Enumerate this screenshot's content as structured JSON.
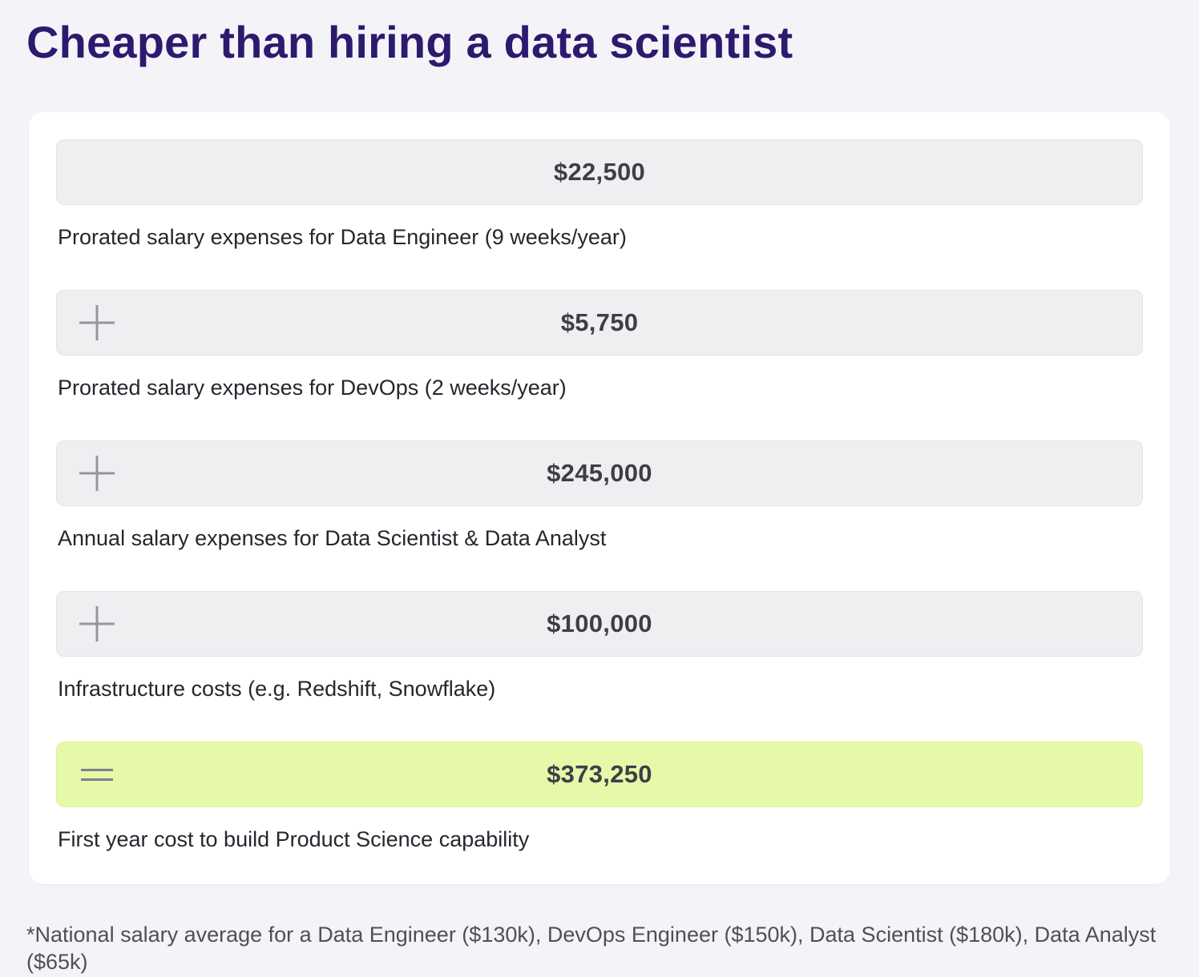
{
  "page": {
    "title": "Cheaper than hiring a data scientist",
    "footnote": "*National salary average for a Data Engineer ($130k), DevOps Engineer ($150k), Data Scientist ($180k), Data Analyst ($65k)"
  },
  "card": {
    "rows": [
      {
        "operator": "none",
        "value": "$22,500",
        "label": "Prorated salary expenses for Data Engineer (9 weeks/year)",
        "highlight": false
      },
      {
        "operator": "plus",
        "value": "$5,750",
        "label": "Prorated salary expenses for DevOps (2 weeks/year)",
        "highlight": false
      },
      {
        "operator": "plus",
        "value": "$245,000",
        "label": "Annual salary expenses for Data Scientist & Data Analyst",
        "highlight": false
      },
      {
        "operator": "plus",
        "value": "$100,000",
        "label": "Infrastructure costs (e.g. Redshift, Snowflake)",
        "highlight": false
      },
      {
        "operator": "equals",
        "value": "$373,250",
        "label": "First year cost to build Product Science capability",
        "highlight": true
      }
    ]
  },
  "colors": {
    "page_background": "#f4f3f7",
    "card_background": "#ffffff",
    "title_text": "#2d1a6e",
    "bar_background": "#efeff2",
    "highlight_background": "#e5f9a9",
    "value_text": "#3e3e48",
    "label_text": "#26262e",
    "operator_icon": "#95959f",
    "footnote_text": "#4f4f5a"
  },
  "chart_data": {
    "type": "table",
    "title": "Cheaper than hiring a data scientist",
    "items": [
      {
        "label": "Prorated salary expenses for Data Engineer (9 weeks/year)",
        "operator": null,
        "value": 22500,
        "display_value": "$22,500"
      },
      {
        "label": "Prorated salary expenses for DevOps (2 weeks/year)",
        "operator": "+",
        "value": 5750,
        "display_value": "$5,750"
      },
      {
        "label": "Annual salary expenses for Data Scientist & Data Analyst",
        "operator": "+",
        "value": 245000,
        "display_value": "$245,000"
      },
      {
        "label": "Infrastructure costs (e.g. Redshift, Snowflake)",
        "operator": "+",
        "value": 100000,
        "display_value": "$100,000"
      },
      {
        "label": "First year cost to build Product Science capability",
        "operator": "=",
        "value": 373250,
        "display_value": "$373,250",
        "highlight": true
      }
    ],
    "footnote": "*National salary average for a Data Engineer ($130k), DevOps Engineer ($150k), Data Scientist ($180k), Data Analyst ($65k)"
  }
}
